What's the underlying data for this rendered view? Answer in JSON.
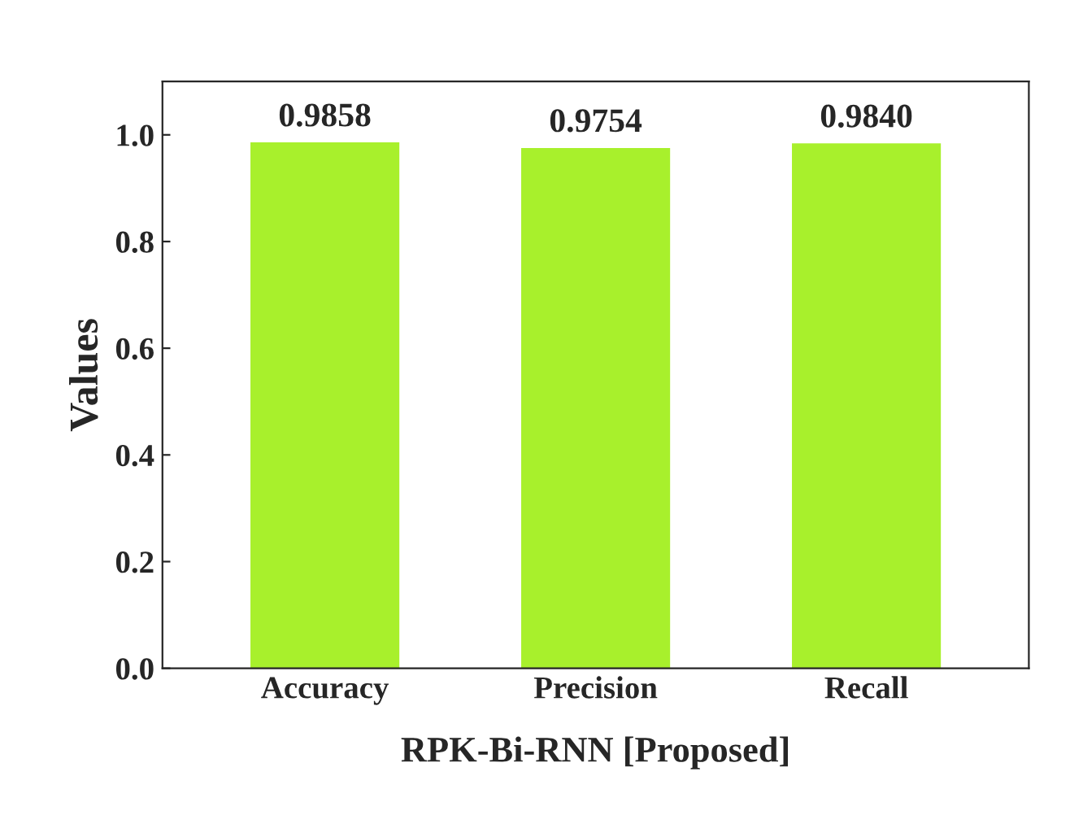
{
  "chart_data": {
    "type": "bar",
    "xlabel": "RPK-Bi-RNN [Proposed]",
    "ylabel": "Values",
    "categories": [
      "Accuracy",
      "Precision",
      "Recall"
    ],
    "values": [
      0.9858,
      0.9754,
      0.984
    ],
    "color": "#a8f02c",
    "ylim": [
      0,
      1.1
    ],
    "yticks": [
      {
        "value": 0,
        "label": "0.0"
      },
      {
        "value": 0.2,
        "label": "0.2"
      },
      {
        "value": 0.4,
        "label": "0.4"
      },
      {
        "value": 0.6,
        "label": "0.6"
      },
      {
        "value": 0.8,
        "label": "0.8"
      },
      {
        "value": 1,
        "label": "1.0"
      }
    ],
    "value_labels": [
      "0.9858",
      "0.9754",
      "0.9840"
    ],
    "grid": false,
    "legend": false
  }
}
